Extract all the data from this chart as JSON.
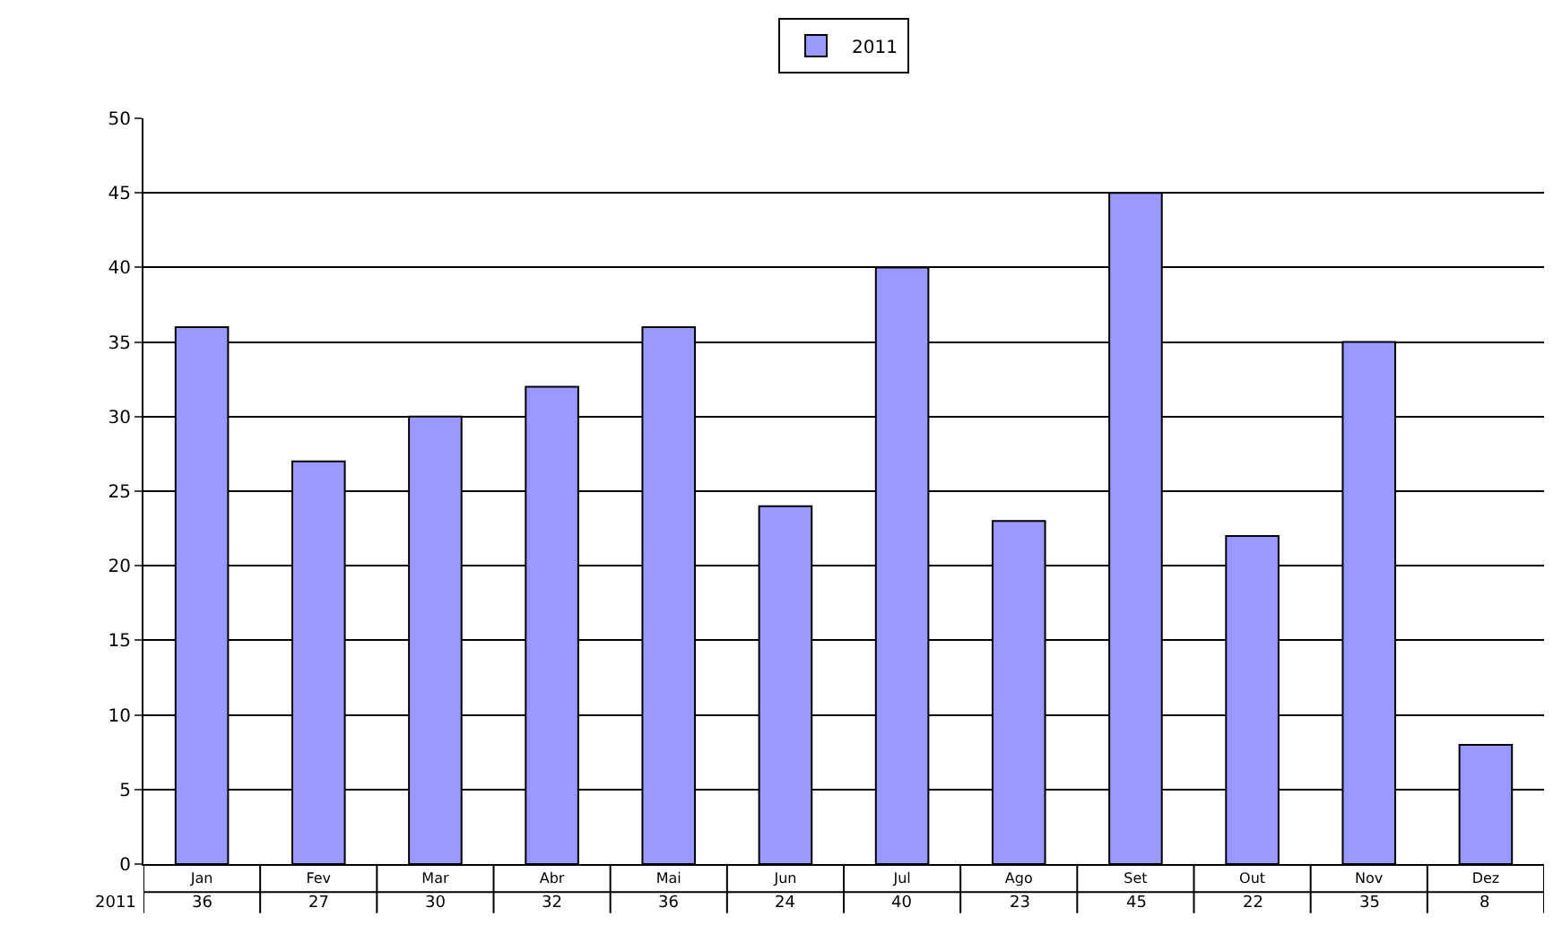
{
  "chart_data": {
    "type": "bar",
    "categories": [
      "Jan",
      "Fev",
      "Mar",
      "Abr",
      "Mai",
      "Jun",
      "Jul",
      "Ago",
      "Set",
      "Out",
      "Nov",
      "Dez"
    ],
    "series": [
      {
        "name": "2011",
        "color": "#9999ff",
        "values": [
          36,
          27,
          30,
          32,
          36,
          24,
          40,
          23,
          45,
          22,
          35,
          8
        ]
      }
    ],
    "ylim": [
      0,
      50
    ],
    "yticks": [
      0,
      5,
      10,
      15,
      20,
      25,
      30,
      35,
      40,
      45,
      50
    ],
    "grid": "y",
    "legend": "top",
    "data_labels": true
  }
}
